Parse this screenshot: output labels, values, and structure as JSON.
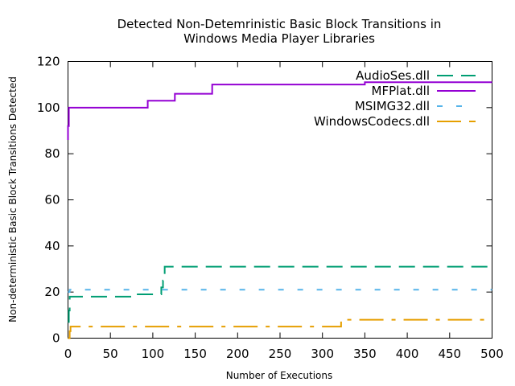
{
  "chart_data": {
    "type": "line",
    "title": [
      "Detected Non-Detemrinistic Basic Block Transitions in",
      "Windows Media Player Libraries"
    ],
    "xlabel": "Number of Executions",
    "ylabel": "Non-deterministic Basic Block Transitions Detected",
    "xlim": [
      0,
      500
    ],
    "ylim": [
      0,
      120
    ],
    "xticks": [
      0,
      50,
      100,
      150,
      200,
      250,
      300,
      350,
      400,
      450,
      500
    ],
    "yticks": [
      0,
      20,
      40,
      60,
      80,
      100,
      120
    ],
    "grid": false,
    "legend_position": "top-right",
    "series": [
      {
        "name": "AudioSes.dll",
        "color": "#009e73",
        "dash": "long-dash",
        "x": [
          0,
          1,
          1,
          2,
          2,
          12,
          12,
          75,
          75,
          110,
          110,
          112,
          112,
          114,
          114,
          500
        ],
        "y": [
          7,
          7,
          12,
          12,
          18,
          18,
          18,
          18,
          19,
          19,
          22,
          22,
          25,
          25,
          31,
          31
        ]
      },
      {
        "name": "MFPlat.dll",
        "color": "#9400d3",
        "dash": "solid",
        "x": [
          0,
          0,
          1,
          1,
          94,
          94,
          126,
          126,
          170,
          170,
          350,
          350,
          500
        ],
        "y": [
          86,
          92,
          92,
          100,
          100,
          103,
          103,
          106,
          106,
          110,
          110,
          111,
          111
        ]
      },
      {
        "name": "MSIMG32.dll",
        "color": "#56b4e9",
        "dash": "dotted",
        "x": [
          0,
          2,
          2,
          110,
          110,
          500
        ],
        "y": [
          20,
          20,
          21,
          21,
          21,
          21
        ]
      },
      {
        "name": "WindowsCodecs.dll",
        "color": "#e69f00",
        "dash": "dash-dot",
        "x": [
          0,
          2,
          2,
          3,
          3,
          322,
          322,
          500
        ],
        "y": [
          0,
          0,
          3,
          3,
          5,
          5,
          8,
          8
        ]
      }
    ]
  }
}
